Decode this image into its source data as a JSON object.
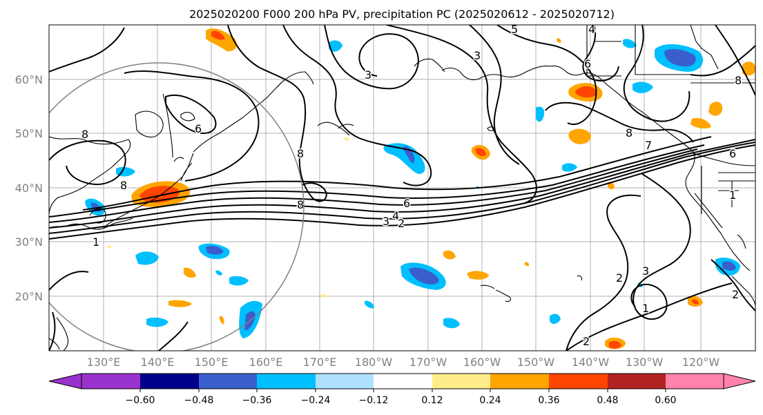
{
  "title": "2025020200 F000 200 hPa PV, precipitation PC (2025020612 - 2025020712)",
  "lat_labels": [
    "60°N",
    "50°N",
    "40°N",
    "30°N",
    "20°N"
  ],
  "lon_labels": [
    "130°E",
    "140°E",
    "150°E",
    "160°E",
    "170°E",
    "180°W",
    "170°W",
    "160°W",
    "150°W",
    "140°W",
    "130°W",
    "120°W"
  ],
  "pv_contour_labels": [
    "8",
    "6",
    "8",
    "8",
    "8",
    "3",
    "4",
    "3",
    "2",
    "1",
    "6",
    "3",
    "8",
    "7",
    "6",
    "1",
    "3",
    "2",
    "1",
    "2",
    "2",
    "5",
    "4",
    "6",
    "8"
  ],
  "colorbar": {
    "colors": [
      "#9a32cd",
      "#00008b",
      "#3a5fcd",
      "#00bfff",
      "#b0e2ff",
      "#ffffff",
      "#ffec8b",
      "#ffa500",
      "#ff4500",
      "#b22222",
      "#ff82ab"
    ],
    "over_color": "#ff82ab",
    "under_color": "#9a32cd",
    "tick_labels": [
      "−0.60",
      "−0.48",
      "−0.36",
      "−0.24",
      "−0.12",
      "0.12",
      "0.24",
      "0.36",
      "0.48",
      "0.60"
    ]
  }
}
